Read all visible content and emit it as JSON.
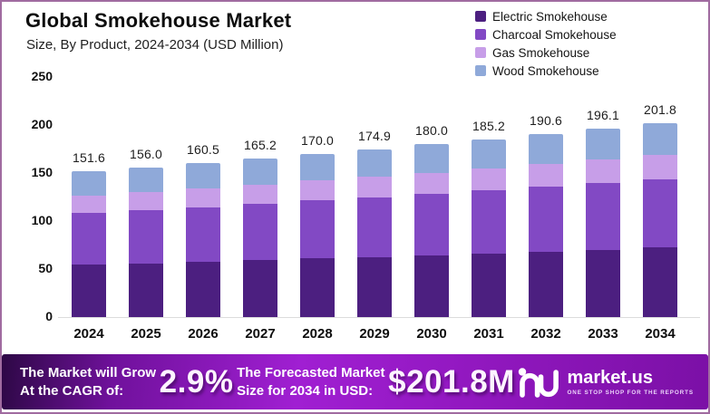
{
  "chart_data": {
    "type": "bar",
    "stacked": true,
    "title": "Global Smokehouse Market",
    "subtitle": "Size, By Product, 2024-2034 (USD Million)",
    "unit": "USD Million",
    "categories": [
      "2024",
      "2025",
      "2026",
      "2027",
      "2028",
      "2029",
      "2030",
      "2031",
      "2032",
      "2033",
      "2034"
    ],
    "series": [
      {
        "name": "Electric Smokehouse",
        "color": "#4c1f80",
        "values": [
          54.3,
          55.8,
          57.5,
          59.1,
          60.9,
          62.6,
          64.4,
          66.3,
          68.2,
          70.2,
          72.2
        ]
      },
      {
        "name": "Charcoal Smokehouse",
        "color": "#8249c4",
        "values": [
          53.8,
          55.4,
          57.0,
          58.6,
          60.4,
          62.1,
          63.9,
          65.7,
          67.7,
          69.6,
          71.6
        ]
      },
      {
        "name": "Gas Smokehouse",
        "color": "#c79ee8",
        "values": [
          18.6,
          19.2,
          19.7,
          20.3,
          20.9,
          21.5,
          22.1,
          22.8,
          23.4,
          24.1,
          24.8
        ]
      },
      {
        "name": "Wood Smokehouse",
        "color": "#8fa9d9",
        "values": [
          24.9,
          25.6,
          26.3,
          27.2,
          27.8,
          28.7,
          29.6,
          30.4,
          31.3,
          32.2,
          33.2
        ]
      }
    ],
    "totals": [
      "151.6",
      "156.0",
      "160.5",
      "165.2",
      "170.0",
      "174.9",
      "180.0",
      "185.2",
      "190.6",
      "196.1",
      "201.8"
    ],
    "ylim": [
      0,
      250
    ],
    "yticks": [
      0,
      50,
      100,
      150,
      200,
      250
    ],
    "grid": false,
    "legend_position": "top-right"
  },
  "banner": {
    "cagr_caption": [
      "The Market will Grow",
      "At the CAGR of:"
    ],
    "cagr_value": "2.9%",
    "forecast_caption": [
      "The Forecasted Market",
      "Size for 2034 in USD:"
    ],
    "forecast_value": "$201.8M",
    "logo_text": "market.us",
    "logo_tagline": "ONE STOP SHOP FOR THE REPORTS",
    "accent_color": "#a01fd2"
  }
}
